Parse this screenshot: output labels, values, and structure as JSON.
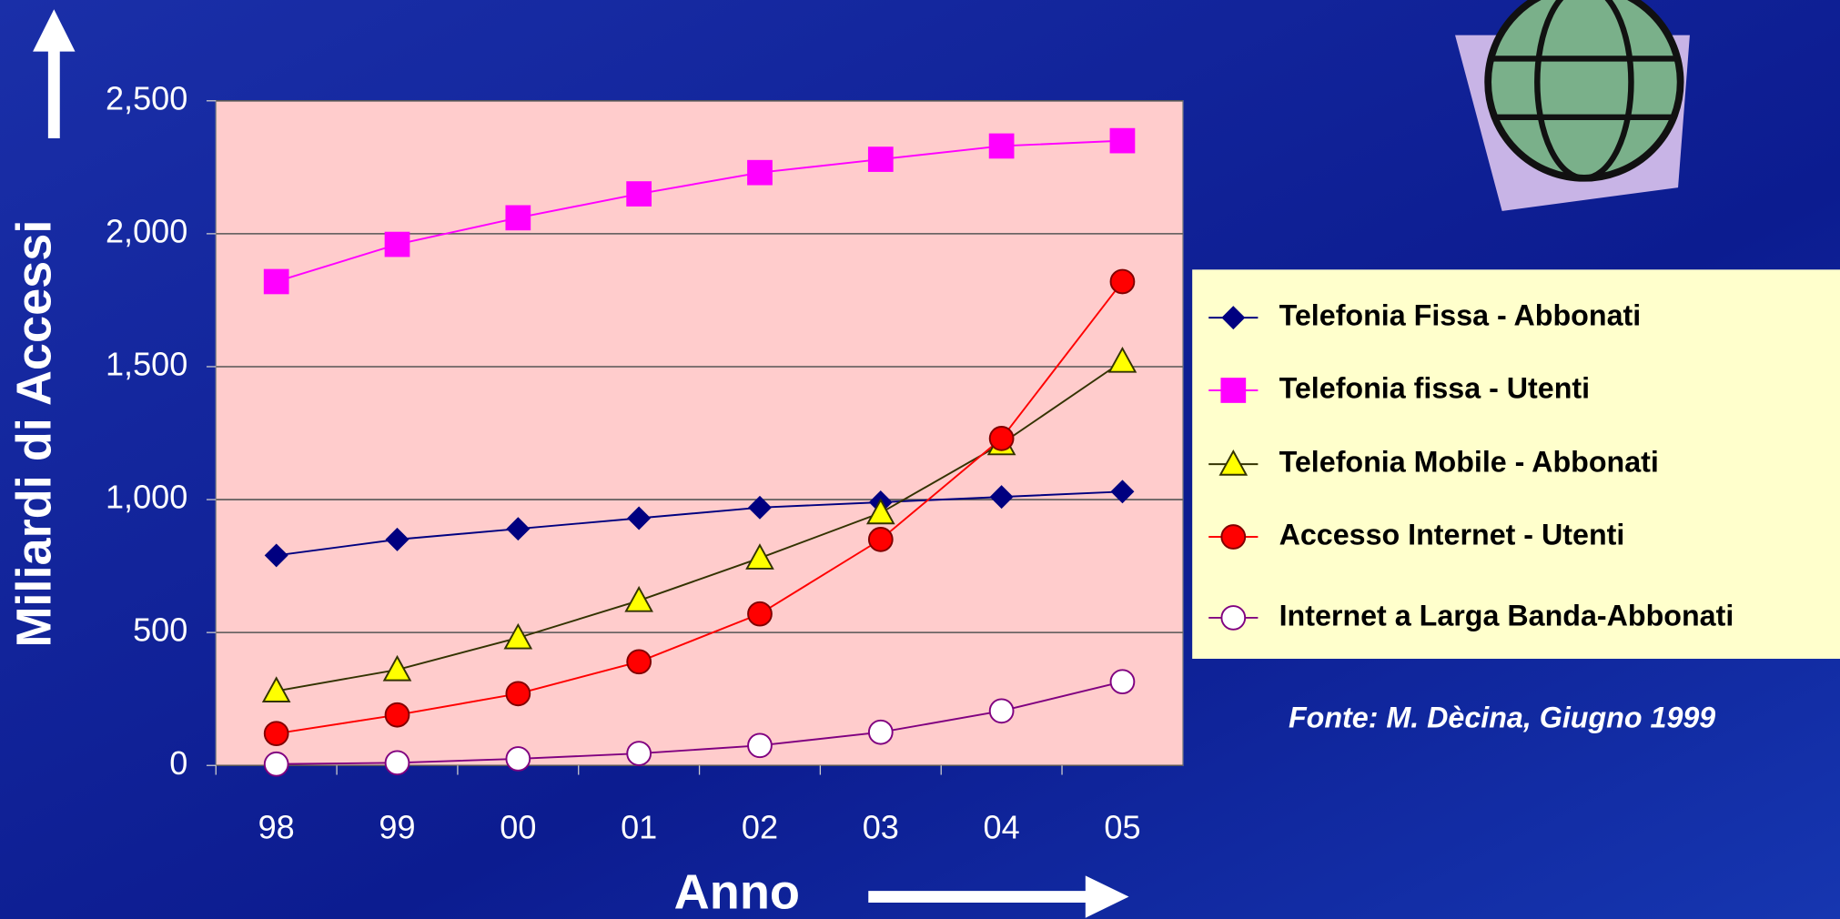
{
  "chart_data": {
    "type": "line",
    "y_label": "Miliardi di Accessi",
    "x_label": "Anno",
    "source": "Fonte: M. Dècina, Giugno 1999",
    "categories": [
      "98",
      "99",
      "00",
      "01",
      "02",
      "03",
      "04",
      "05"
    ],
    "ylim": [
      0,
      2500
    ],
    "yticks": [
      0,
      500,
      {
        "value": 1000,
        "label": "1,000"
      },
      {
        "value": 1500,
        "label": "1,500"
      },
      {
        "value": 2000,
        "label": "2,000"
      },
      {
        "value": 2500,
        "label": "2,500"
      }
    ],
    "grid": true,
    "legend": "right",
    "series": [
      {
        "name": "Telefonia Fissa - Abbonati",
        "color": "#000080",
        "fill": "#000080",
        "marker": "diamond",
        "values": [
          790,
          850,
          890,
          930,
          970,
          990,
          1010,
          1030
        ]
      },
      {
        "name": "Telefonia fissa - Utenti",
        "color": "#ff00ff",
        "fill": "#ff00ff",
        "marker": "square",
        "values": [
          1820,
          1960,
          2060,
          2150,
          2230,
          2280,
          2330,
          2350
        ]
      },
      {
        "name": "Telefonia Mobile - Abbonati",
        "color": "#333300",
        "fill": "#ffff00",
        "marker": "triangle",
        "values": [
          280,
          360,
          480,
          620,
          780,
          950,
          1210,
          1520
        ]
      },
      {
        "name": "Accesso Internet - Utenti",
        "color": "#ff0000",
        "fill": "#ff0000",
        "marker": "circle",
        "values": [
          120,
          190,
          270,
          390,
          570,
          850,
          1230,
          1820
        ]
      },
      {
        "name": "Internet a Larga Banda-Abbonati",
        "color": "#800080",
        "fill": "#ffffff",
        "marker": "circle",
        "values": [
          5,
          10,
          25,
          45,
          75,
          125,
          205,
          315
        ]
      }
    ]
  }
}
